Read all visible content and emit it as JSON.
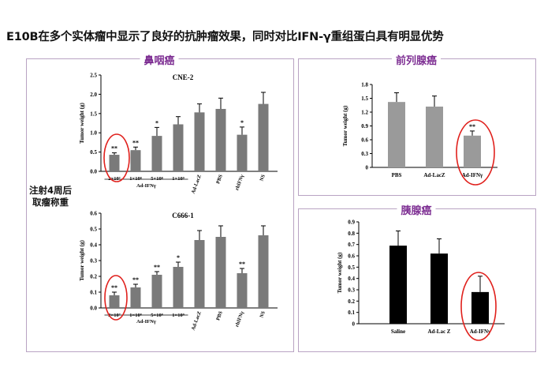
{
  "headline": "E10B在多个实体瘤中显示了良好的抗肿瘤效果，同时对比IFN-γ重组蛋白具有明显优势",
  "side_note": "注射4周后\n取瘤称重",
  "panels": {
    "nasopharyngeal": "鼻咽癌",
    "prostate": "前列腺癌",
    "pancreatic": "胰腺癌"
  },
  "colors": {
    "panel_border": "#b9a3c3",
    "panel_title": "#7e2f93",
    "highlight_ellipse": "#e0201c",
    "bar_gray": "#7a7a7a",
    "bar_black": "#000000"
  },
  "chart_data": [
    {
      "id": "cne2",
      "type": "bar",
      "title": "CNE-2",
      "ylabel": "Tumor weight (g)",
      "ylim": [
        0,
        2.5
      ],
      "yticks": [
        "0.0",
        "0.5",
        "1.0",
        "1.5",
        "2.0",
        "2.5"
      ],
      "ytick_values": [
        0,
        0.5,
        1.0,
        1.5,
        2.0,
        2.5
      ],
      "categories": [
        "2×10⁷",
        "1×10⁸",
        "5×10⁸",
        "1×10⁹",
        "Ad-LacZ",
        "PBS",
        "rhIFNγ",
        "NS"
      ],
      "values": [
        0.43,
        0.55,
        0.92,
        1.22,
        1.53,
        1.62,
        0.95,
        1.75
      ],
      "errors": [
        0.05,
        0.08,
        0.22,
        0.2,
        0.22,
        0.28,
        0.2,
        0.3
      ],
      "significance": [
        "**",
        "**",
        "*",
        "",
        "",
        "",
        "*",
        ""
      ],
      "group_label": "Ad-IFNγ",
      "highlighted_index": 0
    },
    {
      "id": "c666",
      "type": "bar",
      "title": "C666-1",
      "ylabel": "Tumor weight (g)",
      "ylim": [
        0,
        0.6
      ],
      "yticks": [
        "0.0",
        "0.1",
        "0.2",
        "0.3",
        "0.4",
        "0.5",
        "0.6"
      ],
      "ytick_values": [
        0,
        0.1,
        0.2,
        0.3,
        0.4,
        0.5,
        0.6
      ],
      "categories": [
        "2×10⁷",
        "1×10⁸",
        "5×10⁸",
        "1×10⁹",
        "Ad-LacZ",
        "PBS",
        "rhIFNγ",
        "NS"
      ],
      "values": [
        0.08,
        0.13,
        0.21,
        0.26,
        0.43,
        0.45,
        0.22,
        0.46
      ],
      "errors": [
        0.02,
        0.02,
        0.02,
        0.03,
        0.06,
        0.07,
        0.03,
        0.06
      ],
      "significance": [
        "**",
        "**",
        "**",
        "*",
        "",
        "",
        "**",
        ""
      ],
      "group_label": "Ad-IFNγ",
      "highlighted_index": 0
    },
    {
      "id": "prostate",
      "type": "bar",
      "title": "",
      "ylabel": "Tumor weight (g)",
      "ylim": [
        0,
        1.8
      ],
      "yticks": [
        "0",
        "0.3",
        "0.6",
        "0.9",
        "1.2",
        "1.5",
        "1.8"
      ],
      "ytick_values": [
        0,
        0.3,
        0.6,
        0.9,
        1.2,
        1.5,
        1.8
      ],
      "categories": [
        "PBS",
        "Ad-LacZ",
        "Ad-IFNγ"
      ],
      "values": [
        1.42,
        1.32,
        0.69
      ],
      "errors": [
        0.2,
        0.23,
        0.1
      ],
      "significance": [
        "",
        "",
        "**"
      ],
      "highlighted_index": 2
    },
    {
      "id": "pancreatic",
      "type": "bar",
      "title": "",
      "ylabel": "Tumor weight (g)",
      "ylim": [
        0,
        0.9
      ],
      "yticks": [
        "0",
        "0.1",
        "0.2",
        "0.3",
        "0.4",
        "0.5",
        "0.6",
        "0.7",
        "0.8",
        "0.9"
      ],
      "ytick_values": [
        0,
        0.1,
        0.2,
        0.3,
        0.4,
        0.5,
        0.6,
        0.7,
        0.8,
        0.9
      ],
      "categories": [
        "Saline",
        "Ad-Lac Z",
        "Ad-IFNγ"
      ],
      "values": [
        0.69,
        0.62,
        0.28
      ],
      "errors": [
        0.13,
        0.13,
        0.14
      ],
      "significance": [
        "",
        "",
        ""
      ],
      "highlighted_index": 2
    }
  ]
}
